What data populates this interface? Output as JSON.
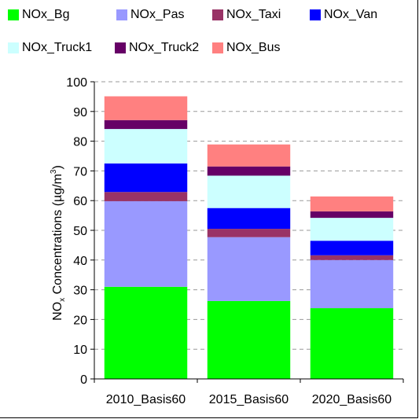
{
  "chart_data": {
    "type": "bar",
    "stacked": true,
    "categories": [
      "2010_Basis60",
      "2015_Basis60",
      "2020_Basis60"
    ],
    "series": [
      {
        "name": "NOx_Bg",
        "color": "#00ff00",
        "values": [
          31,
          26.2,
          23.8
        ]
      },
      {
        "name": "NOx_Pas",
        "color": "#9999ff",
        "values": [
          28.8,
          21.5,
          16.2
        ]
      },
      {
        "name": "NOx_Taxi",
        "color": "#993366",
        "values": [
          3.1,
          2.8,
          1.6
        ]
      },
      {
        "name": "NOx_Van",
        "color": "#0000ff",
        "values": [
          9.6,
          7.0,
          4.9
        ]
      },
      {
        "name": "NOx_Truck1",
        "color": "#ccffff",
        "values": [
          11.6,
          10.9,
          7.7
        ]
      },
      {
        "name": "NOx_Truck2",
        "color": "#660066",
        "values": [
          3.0,
          3.1,
          2.2
        ]
      },
      {
        "name": "NOx_Bus",
        "color": "#ff8080",
        "values": [
          8.0,
          7.4,
          5.0
        ]
      }
    ],
    "ylabel_prefix": "NO",
    "ylabel_sub": "x",
    "ylabel_mid": " Concentrations (µg/m",
    "ylabel_sup": "3",
    "ylabel_suffix": ")",
    "ylim": [
      0,
      100
    ],
    "yticks": [
      0,
      10,
      20,
      30,
      40,
      50,
      60,
      70,
      80,
      90,
      100
    ],
    "grid": true,
    "legend_position": "top"
  }
}
